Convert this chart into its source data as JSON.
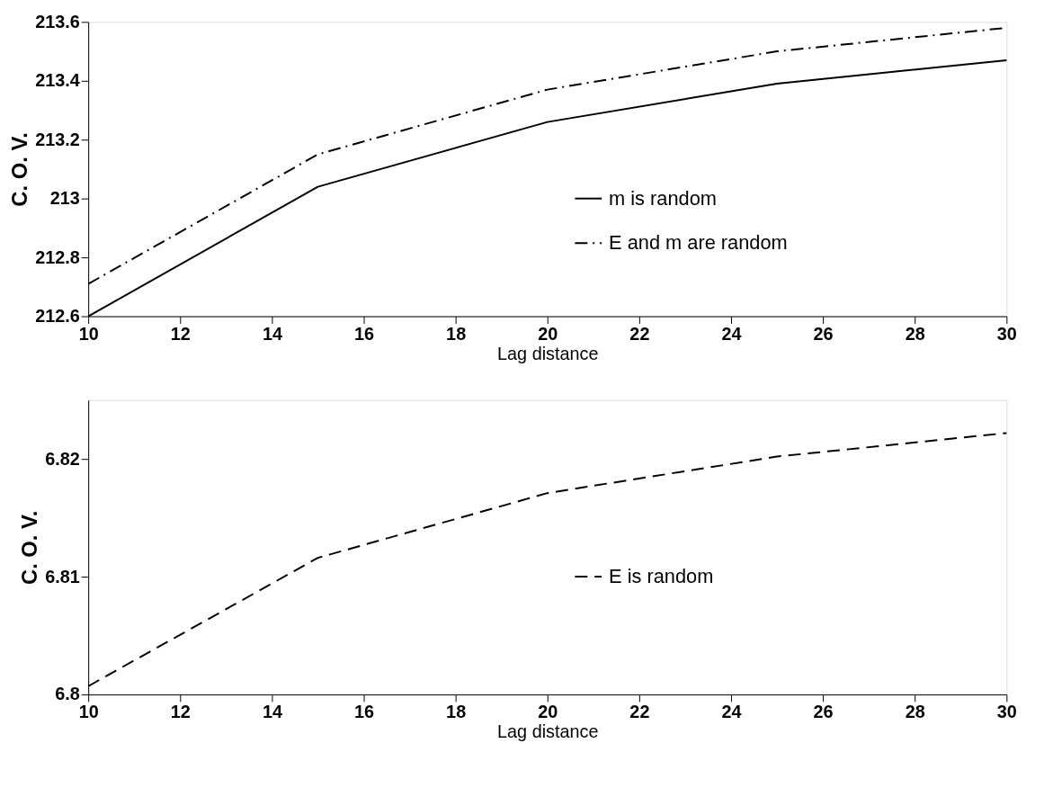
{
  "chart_data": [
    {
      "type": "line",
      "xlabel": "Lag distance",
      "ylabel": "C. O. V.",
      "x": [
        10,
        15,
        20,
        25,
        30
      ],
      "xlim": [
        10,
        30
      ],
      "xticks": [
        10,
        12,
        14,
        16,
        18,
        20,
        22,
        24,
        26,
        28,
        30
      ],
      "ylim": [
        212.6,
        213.6
      ],
      "yticks": [
        212.6,
        212.8,
        213,
        213.2,
        213.4,
        213.6
      ],
      "grid": false,
      "legend": "right",
      "marker": "none",
      "series": [
        {
          "name": "m is random",
          "color": "#000000",
          "line_style": "solid",
          "values": [
            212.6,
            213.04,
            213.26,
            213.39,
            213.47
          ]
        },
        {
          "name": "E and m are random",
          "color": "#000000",
          "line_style": "dashdot",
          "values": [
            212.71,
            213.15,
            213.37,
            213.5,
            213.58
          ]
        }
      ]
    },
    {
      "type": "line",
      "xlabel": "Lag distance",
      "ylabel": "C. O. V.",
      "x": [
        10,
        15,
        20,
        25,
        30
      ],
      "xlim": [
        10,
        30
      ],
      "xticks": [
        10,
        12,
        14,
        16,
        18,
        20,
        22,
        24,
        26,
        28,
        30
      ],
      "ylim": [
        6.8,
        6.825
      ],
      "yticks": [
        6.8,
        6.81,
        6.82
      ],
      "grid": false,
      "legend": "right",
      "marker": "none",
      "series": [
        {
          "name": "E is random",
          "color": "#000000",
          "line_style": "dashed",
          "values": [
            6.8007,
            6.8116,
            6.8171,
            6.8202,
            6.8222
          ]
        }
      ]
    }
  ]
}
